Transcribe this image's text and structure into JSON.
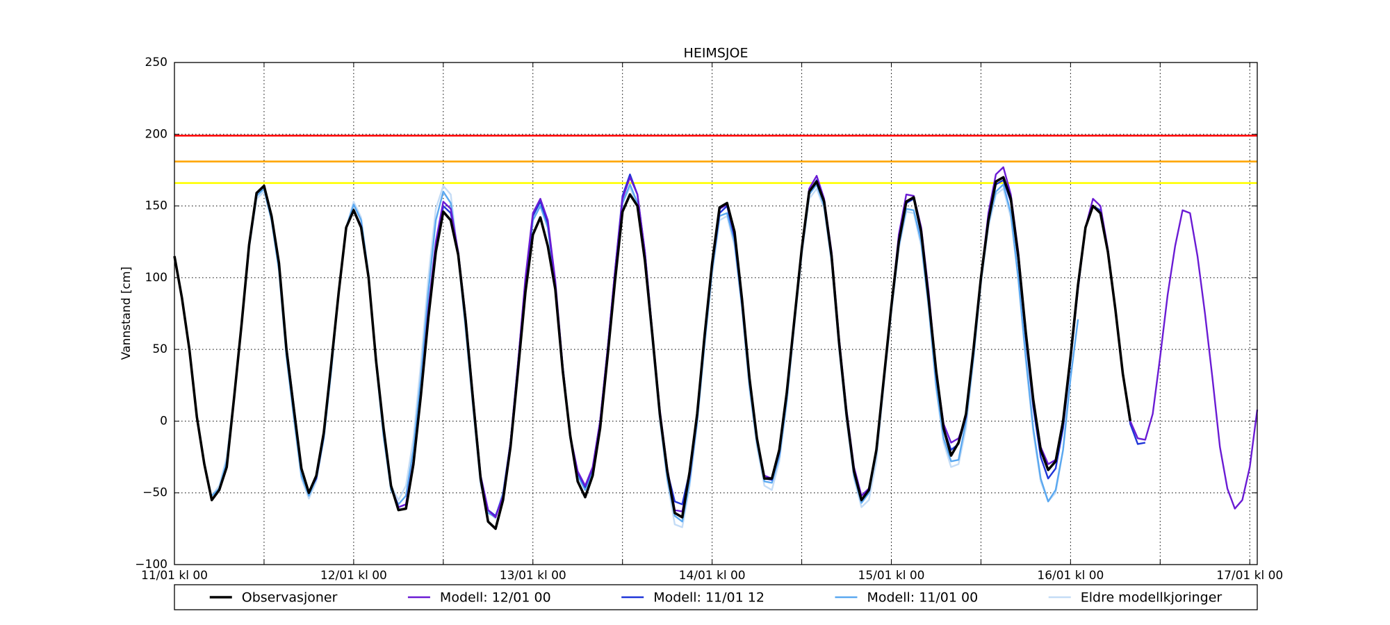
{
  "chart_data": {
    "type": "line",
    "title": "HEIMSJOE",
    "y_label": "Vannstand [cm]",
    "x": [
      0,
      1,
      2,
      3,
      4,
      5,
      6,
      7,
      8,
      9,
      10,
      11,
      12,
      13,
      14,
      15,
      16,
      17,
      18,
      19,
      20,
      21,
      22,
      23,
      24,
      25,
      26,
      27,
      28,
      29,
      30,
      31,
      32,
      33,
      34,
      35,
      36,
      37,
      38,
      39,
      40,
      41,
      42,
      43,
      44,
      45,
      46,
      47,
      48,
      49,
      50,
      51,
      52,
      53,
      54,
      55,
      56,
      57,
      58,
      59,
      60,
      61,
      62,
      63,
      64,
      65,
      66,
      67,
      68,
      69,
      70,
      71,
      72,
      73,
      74,
      75,
      76,
      77,
      78,
      79,
      80,
      81,
      82,
      83,
      84,
      85,
      86,
      87,
      88,
      89,
      90,
      91,
      92,
      93,
      94,
      95,
      96,
      97,
      98,
      99,
      100,
      101,
      102,
      103,
      104,
      105,
      106,
      107,
      108,
      109,
      110,
      111,
      112,
      113,
      114,
      115,
      116,
      117,
      118,
      119,
      120,
      121,
      122,
      123,
      124,
      125,
      126,
      127,
      128,
      129,
      130,
      131,
      132,
      133,
      134,
      135,
      136,
      137,
      138,
      139,
      140,
      141,
      142,
      143,
      144,
      145
    ],
    "xlim": [
      0,
      145
    ],
    "xticks": [
      {
        "value": 0,
        "label": "11/01 kl 00"
      },
      {
        "value": 12,
        "label": null
      },
      {
        "value": 24,
        "label": "12/01 kl 00"
      },
      {
        "value": 36,
        "label": null
      },
      {
        "value": 48,
        "label": "13/01 kl 00"
      },
      {
        "value": 60,
        "label": null
      },
      {
        "value": 72,
        "label": "14/01 kl 00"
      },
      {
        "value": 84,
        "label": null
      },
      {
        "value": 96,
        "label": "15/01 kl 00"
      },
      {
        "value": 108,
        "label": null
      },
      {
        "value": 120,
        "label": "16/01 kl 00"
      },
      {
        "value": 132,
        "label": null
      },
      {
        "value": 144,
        "label": "17/01 kl 00"
      }
    ],
    "ylim": [
      -100,
      250
    ],
    "yticks": [
      {
        "value": -100,
        "label": "−100"
      },
      {
        "value": -50,
        "label": "−50"
      },
      0,
      50,
      100,
      150,
      200,
      250
    ],
    "grid": true,
    "legend": "bottom",
    "thresholds": [
      {
        "value": 199,
        "color": "#ff0000"
      },
      {
        "value": 181,
        "color": "#ffa500"
      },
      {
        "value": 166,
        "color": "#ffff00"
      }
    ],
    "series": [
      {
        "name": "Observasjoner",
        "color": "#000000",
        "values": [
          115,
          86,
          50,
          3,
          -30,
          -55,
          -48,
          -32,
          17,
          68,
          123,
          159,
          164,
          143,
          110,
          50,
          8,
          -33,
          -50,
          -38,
          -8,
          40,
          90,
          135,
          147,
          135,
          100,
          42,
          -5,
          -45,
          -62,
          -61,
          -30,
          18,
          72,
          118,
          146,
          140,
          116,
          70,
          14,
          -40,
          -70,
          -75,
          -55,
          -18,
          35,
          90,
          130,
          142,
          122,
          92,
          35,
          -10,
          -42,
          -53,
          -38,
          -5,
          45,
          98,
          146,
          158,
          150,
          112,
          60,
          5,
          -35,
          -64,
          -67,
          -35,
          5,
          60,
          110,
          149,
          152,
          132,
          85,
          30,
          -12,
          -40,
          -40,
          -20,
          20,
          70,
          120,
          160,
          167,
          153,
          115,
          55,
          5,
          -35,
          -55,
          -48,
          -20,
          30,
          80,
          125,
          153,
          156,
          132,
          85,
          35,
          -5,
          -24,
          -15,
          5,
          50,
          100,
          140,
          167,
          170,
          155,
          115,
          62,
          15,
          -20,
          -34,
          -28,
          0,
          45,
          95,
          135,
          150,
          145,
          118,
          78,
          33,
          0,
          null,
          null,
          null,
          null,
          null,
          null,
          null,
          null,
          null,
          null,
          null,
          null,
          null,
          null,
          null,
          null,
          null
        ]
      },
      {
        "name": "Modell: 12/01 00",
        "color": "#6a1bd4",
        "values": [
          null,
          null,
          null,
          null,
          null,
          null,
          null,
          null,
          null,
          null,
          null,
          null,
          null,
          null,
          null,
          null,
          null,
          null,
          null,
          null,
          null,
          null,
          null,
          null,
          147,
          136,
          100,
          42,
          -5,
          -45,
          -60,
          -58,
          -28,
          20,
          78,
          125,
          153,
          148,
          118,
          72,
          16,
          -38,
          -62,
          -67,
          -52,
          -15,
          40,
          100,
          145,
          155,
          140,
          98,
          38,
          -10,
          -35,
          -45,
          -32,
          0,
          50,
          105,
          155,
          170,
          158,
          118,
          62,
          8,
          -33,
          -62,
          -63,
          -38,
          3,
          60,
          110,
          148,
          151,
          130,
          85,
          30,
          -12,
          -38,
          -40,
          -20,
          20,
          70,
          120,
          162,
          171,
          155,
          118,
          58,
          8,
          -32,
          -52,
          -47,
          -20,
          30,
          80,
          130,
          158,
          157,
          135,
          90,
          35,
          -2,
          -15,
          -12,
          3,
          50,
          100,
          145,
          172,
          177,
          158,
          118,
          62,
          15,
          -18,
          -30,
          -27,
          0,
          45,
          95,
          135,
          155,
          150,
          120,
          78,
          33,
          0,
          -12,
          -13,
          5,
          45,
          88,
          122,
          147,
          145,
          115,
          75,
          30,
          -18,
          -47,
          -61,
          -55,
          -32,
          8
        ]
      },
      {
        "name": "Modell: 11/01 12",
        "color": "#1f35d8",
        "values": [
          null,
          null,
          null,
          null,
          null,
          null,
          null,
          null,
          null,
          null,
          null,
          null,
          164,
          143,
          110,
          52,
          10,
          -33,
          -49,
          -40,
          -10,
          40,
          90,
          135,
          147,
          136,
          100,
          42,
          -5,
          -45,
          -60,
          -58,
          -28,
          20,
          75,
          122,
          150,
          145,
          118,
          72,
          16,
          -38,
          -62,
          -66,
          -52,
          -15,
          40,
          98,
          143,
          153,
          138,
          96,
          38,
          -10,
          -36,
          -46,
          -33,
          0,
          50,
          105,
          157,
          172,
          158,
          118,
          62,
          5,
          -35,
          -56,
          -58,
          -35,
          3,
          58,
          108,
          145,
          150,
          128,
          82,
          28,
          -12,
          -40,
          -41,
          -22,
          18,
          70,
          120,
          160,
          168,
          153,
          115,
          55,
          5,
          -35,
          -52,
          -47,
          -20,
          30,
          80,
          125,
          152,
          155,
          130,
          85,
          32,
          -5,
          -20,
          -16,
          3,
          50,
          100,
          140,
          165,
          168,
          153,
          112,
          58,
          10,
          -25,
          -40,
          -33,
          -5,
          42,
          92,
          135,
          150,
          147,
          118,
          78,
          33,
          -2,
          -16,
          -15,
          null,
          null,
          null,
          null,
          null,
          null,
          null,
          null,
          null,
          null,
          null,
          null,
          null,
          null,
          null
        ]
      },
      {
        "name": "Modell: 11/01 00",
        "color": "#5aa8f0",
        "values": [
          null,
          null,
          null,
          null,
          null,
          -52,
          -47,
          -28,
          18,
          68,
          122,
          157,
          162,
          140,
          105,
          45,
          3,
          -38,
          -52,
          -40,
          -12,
          35,
          90,
          135,
          151,
          140,
          102,
          40,
          -10,
          -48,
          -58,
          -52,
          -20,
          30,
          90,
          140,
          160,
          152,
          115,
          65,
          10,
          -42,
          -64,
          -67,
          -50,
          -15,
          38,
          95,
          140,
          150,
          135,
          95,
          35,
          -12,
          -38,
          -48,
          -35,
          -2,
          48,
          100,
          152,
          165,
          152,
          112,
          58,
          3,
          -40,
          -66,
          -70,
          -42,
          0,
          55,
          105,
          143,
          145,
          125,
          80,
          25,
          -15,
          -42,
          -43,
          -25,
          15,
          68,
          118,
          158,
          165,
          150,
          112,
          52,
          3,
          -38,
          -57,
          -50,
          -22,
          28,
          78,
          122,
          148,
          147,
          125,
          80,
          25,
          -12,
          -28,
          -27,
          0,
          45,
          98,
          138,
          160,
          165,
          145,
          100,
          45,
          -5,
          -40,
          -56,
          -48,
          -20,
          30,
          71,
          null,
          null,
          null,
          null,
          null,
          null,
          null,
          null,
          null,
          null,
          null,
          null,
          null,
          null,
          null,
          null,
          null,
          null,
          null,
          null,
          null,
          null,
          null,
          null
        ]
      },
      {
        "name": "Eldre modellkjoringer",
        "color": "#c4dcf6",
        "values": [
          null,
          null,
          null,
          null,
          null,
          -52,
          -45,
          -25,
          18,
          68,
          120,
          155,
          160,
          140,
          105,
          45,
          0,
          -40,
          -54,
          -42,
          -12,
          35,
          90,
          135,
          153,
          142,
          102,
          40,
          -12,
          -45,
          -55,
          -45,
          -12,
          40,
          100,
          148,
          164,
          158,
          115,
          62,
          8,
          -45,
          -63,
          -68,
          -50,
          -15,
          38,
          95,
          140,
          150,
          135,
          95,
          35,
          -12,
          -38,
          -48,
          -35,
          -2,
          48,
          100,
          152,
          163,
          150,
          110,
          55,
          0,
          -42,
          -72,
          -74,
          -45,
          -2,
          52,
          102,
          140,
          143,
          122,
          78,
          22,
          -18,
          -45,
          -48,
          -28,
          12,
          65,
          115,
          155,
          162,
          148,
          110,
          50,
          0,
          -40,
          -60,
          -55,
          -28,
          25,
          75,
          120,
          146,
          145,
          122,
          78,
          22,
          -15,
          -32,
          -30,
          -5,
          42,
          95,
          135,
          158,
          162,
          142,
          98,
          42,
          -8,
          -42,
          -56,
          -50,
          -20,
          30,
          null,
          null,
          null,
          null,
          null,
          null,
          null,
          null,
          null,
          null,
          null,
          null,
          null,
          null,
          null,
          null,
          null,
          null,
          null,
          null,
          null,
          null,
          null,
          null,
          null
        ]
      }
    ]
  }
}
